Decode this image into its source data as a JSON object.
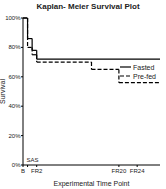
{
  "chart_data": {
    "type": "line",
    "title": "Kaplan- Meier Survival Plot",
    "x_label": "Experimental Time Point",
    "y_label": "Survival",
    "xlim": [
      0,
      30
    ],
    "xticks": [
      {
        "value": 0,
        "label": "B"
      },
      {
        "value": 1,
        "label": "SAS"
      },
      {
        "value": 3,
        "label": "FR2"
      },
      {
        "value": 21,
        "label": "FR20"
      },
      {
        "value": 25,
        "label": "FR24"
      }
    ],
    "ylim": [
      0,
      100
    ],
    "yticks": [
      {
        "value": 0,
        "label": "0%"
      },
      {
        "value": 20,
        "label": "20%"
      },
      {
        "value": 40,
        "label": "40%"
      },
      {
        "value": 60,
        "label": "60%"
      },
      {
        "value": 80,
        "label": "80%"
      },
      {
        "value": 100,
        "label": "100%"
      }
    ],
    "legend": "right",
    "grid": false,
    "series": [
      {
        "name": "Fasted",
        "color": "#000000",
        "line_style": "solid",
        "x": [
          0,
          1,
          2,
          3,
          30
        ],
        "values": [
          100,
          86,
          78,
          72,
          72
        ]
      },
      {
        "name": "Pre-fed",
        "color": "#000000",
        "line_style": "dashed",
        "x": [
          0,
          1,
          2,
          3,
          15,
          21,
          30
        ],
        "values": [
          100,
          80,
          75,
          70,
          65,
          56,
          56
        ]
      }
    ]
  }
}
